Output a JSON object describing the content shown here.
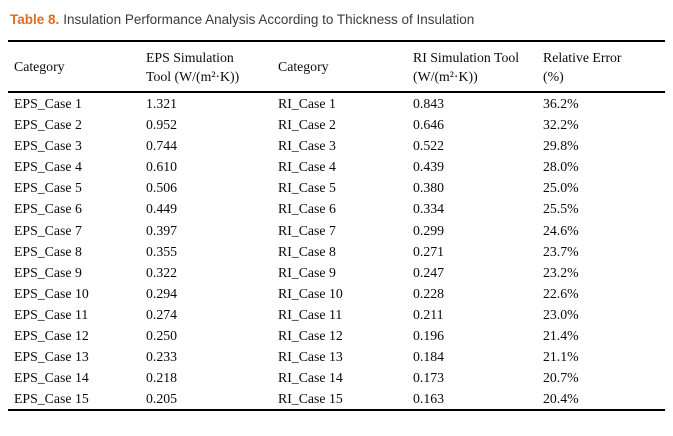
{
  "caption": {
    "label": "Table 8.",
    "text": "Insulation Performance Analysis According to Thickness of Insulation",
    "accent_color": "#E06C1F"
  },
  "table": {
    "headers": [
      {
        "line1": "Category",
        "line2": ""
      },
      {
        "line1": "EPS Simulation",
        "line2": "Tool (W/(m²·K))"
      },
      {
        "line1": "Category",
        "line2": ""
      },
      {
        "line1": "RI Simulation Tool",
        "line2": "(W/(m²·K))"
      },
      {
        "line1": "Relative Error",
        "line2": "(%)"
      }
    ],
    "rows": [
      [
        "EPS_Case 1",
        "1.321",
        "RI_Case 1",
        "0.843",
        "36.2%"
      ],
      [
        "EPS_Case 2",
        "0.952",
        "RI_Case 2",
        "0.646",
        "32.2%"
      ],
      [
        "EPS_Case 3",
        "0.744",
        "RI_Case 3",
        "0.522",
        "29.8%"
      ],
      [
        "EPS_Case 4",
        "0.610",
        "RI_Case 4",
        "0.439",
        "28.0%"
      ],
      [
        "EPS_Case 5",
        "0.506",
        "RI_Case 5",
        "0.380",
        "25.0%"
      ],
      [
        "EPS_Case 6",
        "0.449",
        "RI_Case 6",
        "0.334",
        "25.5%"
      ],
      [
        "EPS_Case 7",
        "0.397",
        "RI_Case 7",
        "0.299",
        "24.6%"
      ],
      [
        "EPS_Case 8",
        "0.355",
        "RI_Case 8",
        "0.271",
        "23.7%"
      ],
      [
        "EPS_Case 9",
        "0.322",
        "RI_Case 9",
        "0.247",
        "23.2%"
      ],
      [
        "EPS_Case 10",
        "0.294",
        "RI_Case 10",
        "0.228",
        "22.6%"
      ],
      [
        "EPS_Case 11",
        "0.274",
        "RI_Case 11",
        "0.211",
        "23.0%"
      ],
      [
        "EPS_Case 12",
        "0.250",
        "RI_Case 12",
        "0.196",
        "21.4%"
      ],
      [
        "EPS_Case 13",
        "0.233",
        "RI_Case 13",
        "0.184",
        "21.1%"
      ],
      [
        "EPS_Case 14",
        "0.218",
        "RI_Case 14",
        "0.173",
        "20.7%"
      ],
      [
        "EPS_Case 15",
        "0.205",
        "RI_Case 15",
        "0.163",
        "20.4%"
      ]
    ]
  }
}
